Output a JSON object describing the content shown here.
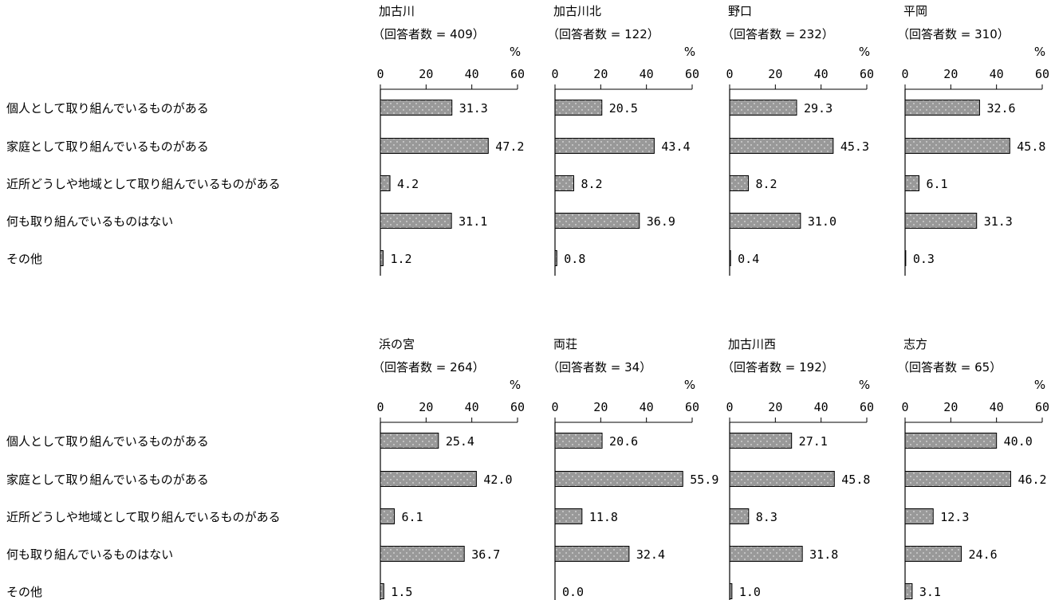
{
  "chart_data": {
    "type": "bar",
    "orientation": "horizontal",
    "unit": "%",
    "xlim": [
      0,
      60
    ],
    "ticks": [
      "0",
      "20",
      "40",
      "60"
    ],
    "categories": [
      "個人として取り組んでいるものがある",
      "家庭として取り組んでいるものがある",
      "近所どうしや地域として取り組んでいるものがある",
      "何も取り組んでいるものはない",
      "その他"
    ],
    "bar_color": "#999999",
    "panels": [
      {
        "name": "加古川",
        "count_label": "（回答者数 = 409）",
        "values": [
          "31.3",
          "47.2",
          "4.2",
          "31.1",
          "1.2"
        ]
      },
      {
        "name": "加古川北",
        "count_label": "（回答者数 = 122）",
        "values": [
          "20.5",
          "43.4",
          "8.2",
          "36.9",
          "0.8"
        ]
      },
      {
        "name": "野口",
        "count_label": "（回答者数 = 232）",
        "values": [
          "29.3",
          "45.3",
          "8.2",
          "31.0",
          "0.4"
        ]
      },
      {
        "name": "平岡",
        "count_label": "（回答者数 = 310）",
        "values": [
          "32.6",
          "45.8",
          "6.1",
          "31.3",
          "0.3"
        ]
      },
      {
        "name": "浜の宮",
        "count_label": "（回答者数 = 264）",
        "values": [
          "25.4",
          "42.0",
          "6.1",
          "36.7",
          "1.5"
        ]
      },
      {
        "name": "両荘",
        "count_label": "（回答者数 = 34）",
        "values": [
          "20.6",
          "55.9",
          "11.8",
          "32.4",
          "0.0"
        ]
      },
      {
        "name": "加古川西",
        "count_label": "（回答者数 = 192）",
        "values": [
          "27.1",
          "45.8",
          "8.3",
          "31.8",
          "1.0"
        ]
      },
      {
        "name": "志方",
        "count_label": "（回答者数 = 65）",
        "values": [
          "40.0",
          "46.2",
          "12.3",
          "24.6",
          "3.1"
        ]
      }
    ]
  }
}
